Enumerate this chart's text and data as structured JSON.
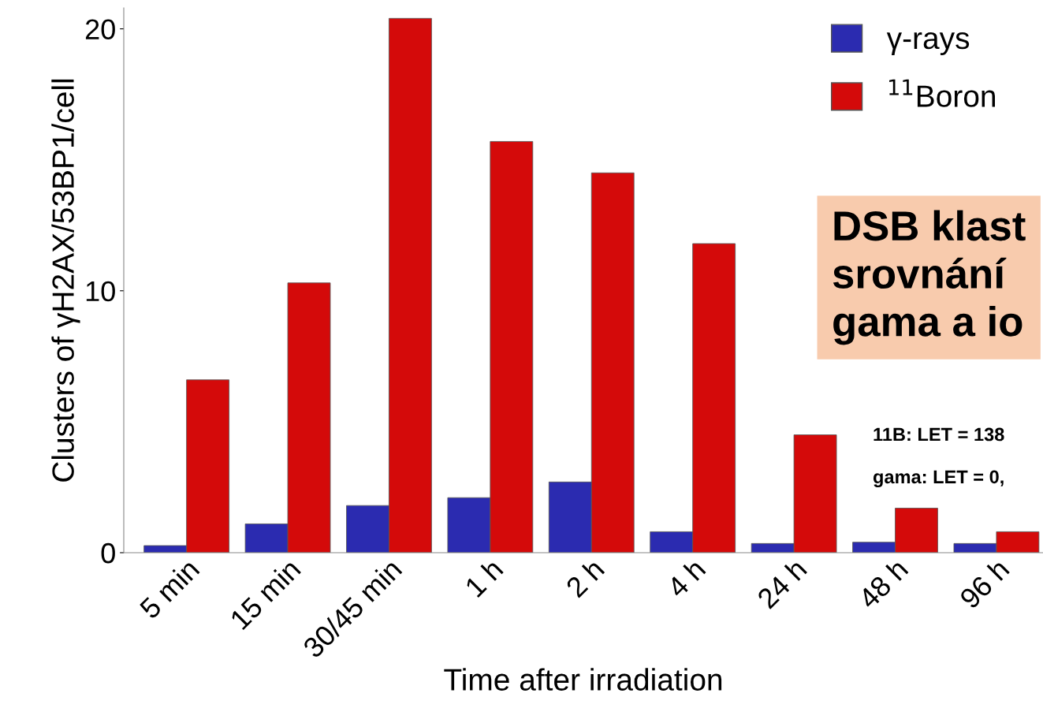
{
  "chart_data": {
    "type": "bar",
    "categories": [
      "5 min",
      "15 min",
      "30/45 min",
      "1 h",
      "2 h",
      "4 h",
      "24 h",
      "48 h",
      "96 h"
    ],
    "series": [
      {
        "name": "γ-rays",
        "color": "#2b2bb0",
        "values": [
          0.27,
          1.1,
          1.8,
          2.1,
          2.7,
          0.8,
          0.35,
          0.4,
          0.35
        ]
      },
      {
        "name": "$^{11}$Boron",
        "color": "#d40a0a",
        "values": [
          6.6,
          10.3,
          20.4,
          15.7,
          14.5,
          11.8,
          4.5,
          1.7,
          0.8
        ]
      }
    ],
    "xlabel": "Time after irradiation",
    "ylabel": "Clusters of γH2AX/53BP1/cell",
    "ylim": [
      0,
      20.8
    ],
    "yticks": [
      0,
      10,
      20
    ],
    "grid": false,
    "legend": "top right",
    "annotations": [
      "DSB klast\nsrovnání\ngama a io",
      "11B: LET = 138",
      "gama: LET = 0,"
    ]
  }
}
